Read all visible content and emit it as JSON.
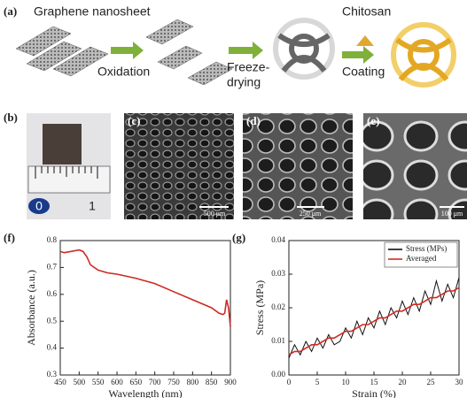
{
  "panels": {
    "a": {
      "label": "(a)",
      "start": "Graphene nanosheet",
      "step1": "Oxidation",
      "step2": [
        "Freeze-",
        "drying"
      ],
      "coat_material": "Chitosan",
      "step3": "Coating"
    },
    "b": {
      "label": "(b)",
      "ruler": [
        "0",
        "1"
      ]
    },
    "c": {
      "label": "(c)",
      "scale": "500 μm"
    },
    "d": {
      "label": "(d)",
      "scale": "250 μm"
    },
    "e": {
      "label": "(e)",
      "scale": "100 μm"
    }
  },
  "chart_data": [
    {
      "type": "line",
      "label": "(f)",
      "x_label": "Wavelength (nm)",
      "y_label": "Absorbance (a.u.)",
      "color": "#cc2a22",
      "x": [
        450,
        460,
        480,
        500,
        510,
        520,
        530,
        550,
        575,
        600,
        650,
        700,
        750,
        800,
        850,
        870,
        880,
        885,
        890,
        895,
        900
      ],
      "values": [
        0.76,
        0.755,
        0.76,
        0.765,
        0.76,
        0.74,
        0.71,
        0.69,
        0.68,
        0.675,
        0.66,
        0.64,
        0.61,
        0.58,
        0.55,
        0.53,
        0.525,
        0.53,
        0.58,
        0.55,
        0.48
      ],
      "xlim": [
        450,
        900
      ],
      "xticks": [
        450,
        500,
        550,
        600,
        650,
        700,
        750,
        800,
        850,
        900
      ],
      "ylim": [
        0.3,
        0.8
      ],
      "yticks": [
        0.3,
        0.4,
        0.5,
        0.6,
        0.7,
        0.8
      ]
    },
    {
      "type": "line",
      "label": "(g)",
      "x_label": "Strain (%)",
      "y_label": "Stress (MPa)",
      "legend": "upper right",
      "x": [
        0,
        1,
        2,
        3,
        4,
        5,
        6,
        7,
        8,
        9,
        10,
        11,
        12,
        13,
        14,
        15,
        16,
        17,
        18,
        19,
        20,
        21,
        22,
        23,
        24,
        25,
        26,
        27,
        28,
        29,
        30
      ],
      "series": [
        {
          "name": "Stress (MPs)",
          "color": "#111111",
          "values": [
            0.005,
            0.009,
            0.006,
            0.01,
            0.007,
            0.011,
            0.008,
            0.012,
            0.009,
            0.01,
            0.014,
            0.011,
            0.016,
            0.012,
            0.017,
            0.014,
            0.019,
            0.015,
            0.02,
            0.017,
            0.022,
            0.018,
            0.023,
            0.019,
            0.025,
            0.021,
            0.028,
            0.022,
            0.027,
            0.023,
            0.029
          ]
        },
        {
          "name": "Averaged",
          "color": "#d42a22",
          "values": [
            0.006,
            0.007,
            0.007,
            0.008,
            0.009,
            0.009,
            0.01,
            0.011,
            0.011,
            0.012,
            0.013,
            0.013,
            0.014,
            0.015,
            0.015,
            0.016,
            0.017,
            0.017,
            0.018,
            0.019,
            0.019,
            0.02,
            0.021,
            0.021,
            0.022,
            0.023,
            0.023,
            0.024,
            0.025,
            0.025,
            0.026
          ]
        }
      ],
      "xlim": [
        0,
        30
      ],
      "xticks": [
        0,
        5,
        10,
        15,
        20,
        25,
        30
      ],
      "ylim": [
        0,
        0.04
      ],
      "yticks": [
        {
          "value": 0,
          "label": "0.00"
        },
        0.01,
        0.02,
        0.03,
        0.04
      ]
    }
  ]
}
